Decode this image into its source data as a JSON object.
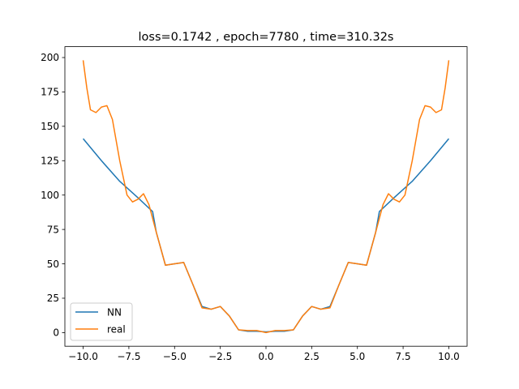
{
  "chart_data": {
    "type": "line",
    "title": "loss=0.1742 , epoch=7780 , time=310.32s",
    "xlabel": "",
    "ylabel": "",
    "xlim": [
      -11,
      11
    ],
    "ylim": [
      -9.9,
      207.9
    ],
    "grid": false,
    "legend_position": "lower-left",
    "x_ticks": [
      -10.0,
      -7.5,
      -5.0,
      -2.5,
      0.0,
      2.5,
      5.0,
      7.5,
      10.0
    ],
    "x_tick_labels": [
      "−10.0",
      "−7.5",
      "−5.0",
      "−2.5",
      "0.0",
      "2.5",
      "5.0",
      "7.5",
      "10.0"
    ],
    "y_ticks": [
      0,
      25,
      50,
      75,
      100,
      125,
      150,
      175,
      200
    ],
    "y_tick_labels": [
      "0",
      "25",
      "50",
      "75",
      "100",
      "125",
      "150",
      "175",
      "200"
    ],
    "series": [
      {
        "name": "NN",
        "color": "#1f77b4",
        "x": [
          -10,
          -9,
          -8,
          -7,
          -6.2,
          -6.0,
          -5.5,
          -5.0,
          -4.5,
          -4.0,
          -3.5,
          -3.0,
          -2.5,
          -2.0,
          -1.5,
          -1.0,
          -0.5,
          0.0,
          0.5,
          1.0,
          1.5,
          2.0,
          2.5,
          3.0,
          3.5,
          4.0,
          4.5,
          5.0,
          5.5,
          6.0,
          6.2,
          7,
          8,
          9,
          10
        ],
        "y": [
          141,
          125,
          110,
          98,
          88,
          73,
          49,
          50,
          51,
          35,
          19,
          17,
          19,
          12,
          2,
          1,
          1,
          0.5,
          1,
          1,
          2,
          12,
          19,
          17,
          19,
          35,
          51,
          50,
          49,
          73,
          88,
          98,
          110,
          125,
          141
        ]
      },
      {
        "name": "real",
        "color": "#ff7f0e",
        "x": [
          -10,
          -9.8,
          -9.6,
          -9.3,
          -9.0,
          -8.7,
          -8.4,
          -8.0,
          -7.6,
          -7.3,
          -7.0,
          -6.7,
          -6.4,
          -6.0,
          -5.5,
          -5.0,
          -4.5,
          -4.0,
          -3.5,
          -3.0,
          -2.5,
          -2.0,
          -1.5,
          -1.0,
          -0.5,
          0.0,
          0.5,
          1.0,
          1.5,
          2.0,
          2.5,
          3.0,
          3.5,
          4.0,
          4.5,
          5.0,
          5.5,
          6.0,
          6.4,
          6.7,
          7.0,
          7.3,
          7.6,
          8.0,
          8.4,
          8.7,
          9.0,
          9.3,
          9.6,
          9.8,
          10
        ],
        "y": [
          198,
          178,
          162,
          160,
          164,
          165,
          155,
          125,
          100,
          95,
          97,
          101,
          93,
          73,
          49,
          50,
          51,
          35,
          18,
          17,
          19,
          12,
          2,
          1.5,
          1.5,
          0,
          1.5,
          1.5,
          2,
          12,
          19,
          17,
          18,
          35,
          51,
          50,
          49,
          73,
          93,
          101,
          97,
          95,
          100,
          125,
          155,
          165,
          164,
          160,
          162,
          178,
          198
        ]
      }
    ]
  }
}
